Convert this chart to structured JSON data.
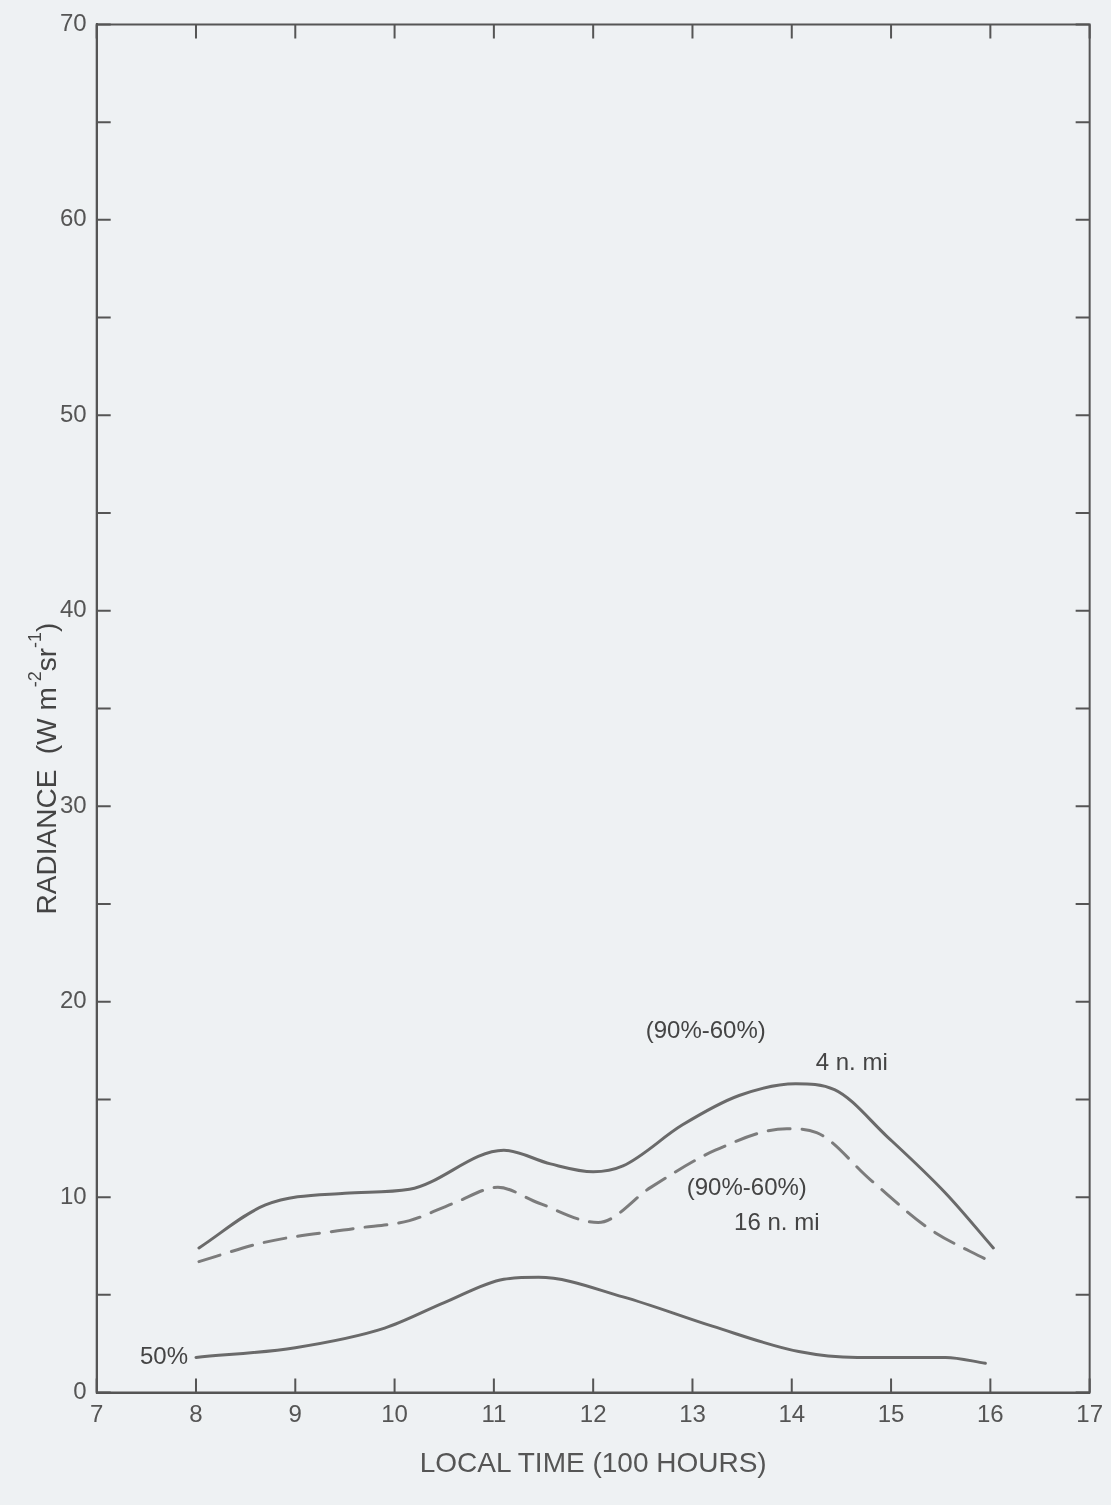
{
  "chart_data": {
    "type": "line",
    "xlabel": "LOCAL TIME (100 HOURS)",
    "ylabel": "RADIANCE  (W m$^{-2}$sr$^{-1}$)",
    "xlim": [
      7,
      17
    ],
    "xticks": [
      7,
      8,
      9,
      10,
      11,
      12,
      13,
      14,
      15,
      16,
      17
    ],
    "ylim": [
      0,
      70
    ],
    "yticks": [
      0,
      {
        "value": 5,
        "label": null
      },
      10,
      {
        "value": 15,
        "label": null
      },
      20,
      {
        "value": 25,
        "label": null
      },
      30,
      {
        "value": 35,
        "label": null
      },
      40,
      {
        "value": 45,
        "label": null
      },
      50,
      {
        "value": 55,
        "label": null
      },
      60,
      {
        "value": 65,
        "label": null
      },
      70
    ],
    "grid": false,
    "legend": false,
    "marker": "none",
    "series": [
      {
        "name": "(90%-60%) 4 n. mi",
        "color": "#6a6a6a",
        "line_style": "solid",
        "x": [
          8.03,
          8.7,
          9.5,
          10.15,
          11.1,
          11.57,
          12.0,
          12.3,
          12.9,
          13.47,
          14.04,
          14.43,
          14.96,
          15.55,
          16.03
        ],
        "values": [
          7.4,
          9.6,
          10.2,
          10.4,
          12.4,
          11.7,
          11.3,
          11.6,
          13.7,
          15.2,
          15.8,
          15.5,
          13.1,
          10.2,
          7.4
        ]
      },
      {
        "name": "(90%-60%) 16 n. mi",
        "color": "#7c7c7c",
        "line_style": "dashed",
        "x": [
          8.03,
          8.7,
          9.6,
          10.15,
          10.6,
          11.04,
          11.45,
          12.05,
          12.58,
          13.23,
          13.95,
          14.25,
          14.79,
          15.38,
          16.0
        ],
        "values": [
          6.7,
          7.7,
          8.4,
          8.8,
          9.7,
          10.5,
          9.7,
          8.7,
          10.5,
          12.4,
          13.5,
          13.3,
          10.9,
          8.4,
          6.7
        ]
      },
      {
        "name": "50%",
        "color": "#6a6a6a",
        "line_style": "solid",
        "x": [
          8.0,
          9.0,
          9.9,
          10.5,
          11.1,
          11.45,
          12.3,
          13.2,
          14.07,
          14.66,
          15.55,
          15.95
        ],
        "values": [
          1.8,
          2.3,
          3.3,
          4.6,
          5.8,
          5.9,
          4.9,
          3.4,
          2.1,
          1.8,
          1.8,
          1.5
        ]
      }
    ]
  }
}
